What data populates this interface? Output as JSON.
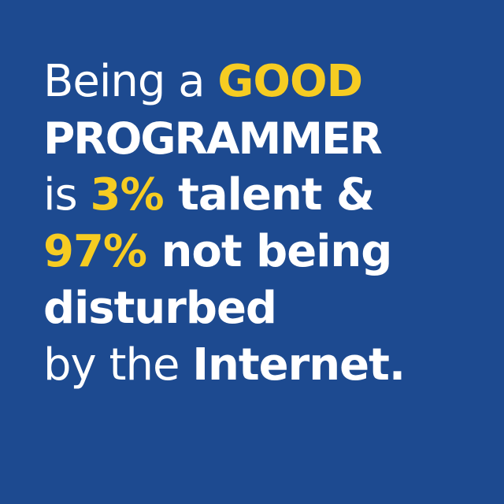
{
  "colors": {
    "background": "#1d4a90",
    "text": "#ffffff",
    "accent": "#f6cc22"
  },
  "quote": {
    "line1": {
      "a": "Being a ",
      "b": "GOOD"
    },
    "line2": {
      "a": "PROGRAMMER"
    },
    "line3": {
      "a": "is ",
      "b": "3%",
      "c": " talent &"
    },
    "line4": {
      "a": "97%",
      "b": " not being"
    },
    "line5": {
      "a": "disturbed"
    },
    "line6": {
      "a": "by the ",
      "b": "Internet."
    }
  }
}
